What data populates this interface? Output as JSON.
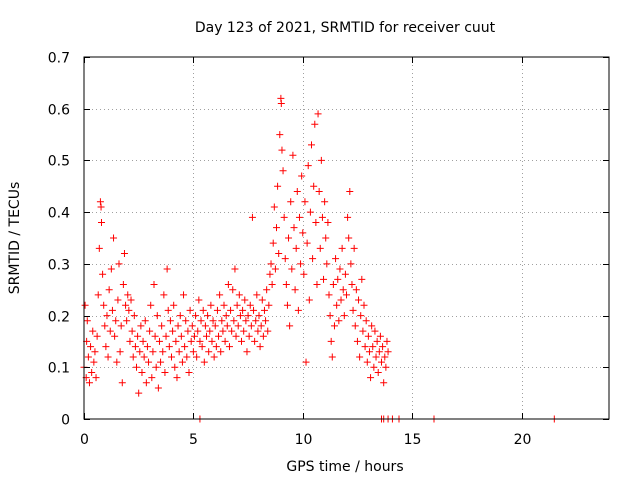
{
  "chart_data": {
    "type": "scatter",
    "title": "Day 123 of 2021, SRMTID for receiver cuut",
    "xlabel": "GPS time / hours",
    "ylabel": "SRMTID / TECUs",
    "xlim": [
      0,
      24
    ],
    "ylim": [
      0,
      0.7
    ],
    "xticks": [
      0,
      5,
      10,
      15,
      20
    ],
    "yticks": [
      0,
      0.1,
      0.2,
      0.3,
      0.4,
      0.5,
      0.6,
      0.7
    ],
    "xtick_labels": [
      "0",
      "5",
      "10",
      "15",
      "20"
    ],
    "ytick_labels": [
      "0",
      "0.1",
      "0.2",
      "0.3",
      "0.4",
      "0.5",
      "0.6",
      "0.7"
    ],
    "grid": true,
    "marker": "+",
    "color": "#ff0000",
    "series": [
      {
        "name": "SRMTID",
        "points": [
          [
            0.0,
            0.1
          ],
          [
            0.05,
            0.22
          ],
          [
            0.1,
            0.08
          ],
          [
            0.12,
            0.15
          ],
          [
            0.15,
            0.19
          ],
          [
            0.2,
            0.12
          ],
          [
            0.25,
            0.07
          ],
          [
            0.3,
            0.14
          ],
          [
            0.35,
            0.09
          ],
          [
            0.4,
            0.17
          ],
          [
            0.45,
            0.11
          ],
          [
            0.5,
            0.13
          ],
          [
            0.55,
            0.08
          ],
          [
            0.6,
            0.16
          ],
          [
            0.65,
            0.24
          ],
          [
            0.7,
            0.33
          ],
          [
            0.75,
            0.42
          ],
          [
            0.78,
            0.41
          ],
          [
            0.8,
            0.38
          ],
          [
            0.85,
            0.28
          ],
          [
            0.9,
            0.22
          ],
          [
            0.95,
            0.18
          ],
          [
            1.0,
            0.14
          ],
          [
            1.05,
            0.2
          ],
          [
            1.1,
            0.12
          ],
          [
            1.15,
            0.25
          ],
          [
            1.2,
            0.17
          ],
          [
            1.25,
            0.29
          ],
          [
            1.3,
            0.21
          ],
          [
            1.35,
            0.35
          ],
          [
            1.4,
            0.16
          ],
          [
            1.45,
            0.19
          ],
          [
            1.5,
            0.11
          ],
          [
            1.55,
            0.23
          ],
          [
            1.6,
            0.3
          ],
          [
            1.65,
            0.13
          ],
          [
            1.7,
            0.18
          ],
          [
            1.75,
            0.07
          ],
          [
            1.8,
            0.26
          ],
          [
            1.85,
            0.32
          ],
          [
            1.9,
            0.22
          ],
          [
            1.95,
            0.19
          ],
          [
            2.0,
            0.24
          ],
          [
            2.05,
            0.21
          ],
          [
            2.1,
            0.15
          ],
          [
            2.15,
            0.23
          ],
          [
            2.2,
            0.17
          ],
          [
            2.25,
            0.12
          ],
          [
            2.3,
            0.2
          ],
          [
            2.35,
            0.14
          ],
          [
            2.4,
            0.1
          ],
          [
            2.45,
            0.16
          ],
          [
            2.5,
            0.05
          ],
          [
            2.55,
            0.13
          ],
          [
            2.6,
            0.18
          ],
          [
            2.65,
            0.09
          ],
          [
            2.7,
            0.15
          ],
          [
            2.75,
            0.12
          ],
          [
            2.8,
            0.19
          ],
          [
            2.85,
            0.07
          ],
          [
            2.9,
            0.14
          ],
          [
            2.95,
            0.11
          ],
          [
            3.0,
            0.17
          ],
          [
            3.05,
            0.22
          ],
          [
            3.1,
            0.08
          ],
          [
            3.15,
            0.13
          ],
          [
            3.2,
            0.26
          ],
          [
            3.25,
            0.16
          ],
          [
            3.3,
            0.1
          ],
          [
            3.35,
            0.2
          ],
          [
            3.4,
            0.06
          ],
          [
            3.45,
            0.15
          ],
          [
            3.5,
            0.11
          ],
          [
            3.55,
            0.18
          ],
          [
            3.6,
            0.13
          ],
          [
            3.65,
            0.24
          ],
          [
            3.7,
            0.09
          ],
          [
            3.75,
            0.16
          ],
          [
            3.8,
            0.29
          ],
          [
            3.85,
            0.21
          ],
          [
            3.9,
            0.14
          ],
          [
            3.95,
            0.19
          ],
          [
            4.0,
            0.12
          ],
          [
            4.05,
            0.17
          ],
          [
            4.1,
            0.22
          ],
          [
            4.15,
            0.1
          ],
          [
            4.2,
            0.15
          ],
          [
            4.25,
            0.08
          ],
          [
            4.3,
            0.18
          ],
          [
            4.35,
            0.13
          ],
          [
            4.4,
            0.2
          ],
          [
            4.45,
            0.16
          ],
          [
            4.5,
            0.11
          ],
          [
            4.55,
            0.24
          ],
          [
            4.6,
            0.14
          ],
          [
            4.65,
            0.19
          ],
          [
            4.7,
            0.12
          ],
          [
            4.75,
            0.17
          ],
          [
            4.8,
            0.09
          ],
          [
            4.85,
            0.21
          ],
          [
            4.9,
            0.15
          ],
          [
            4.95,
            0.18
          ],
          [
            5.0,
            0.13
          ],
          [
            5.05,
            0.16
          ],
          [
            5.1,
            0.2
          ],
          [
            5.15,
            0.12
          ],
          [
            5.2,
            0.17
          ],
          [
            5.25,
            0.23
          ],
          [
            5.3,
            0.15
          ],
          [
            5.35,
            0.19
          ],
          [
            5.4,
            0.14
          ],
          [
            5.45,
            0.21
          ],
          [
            5.5,
            0.11
          ],
          [
            5.55,
            0.18
          ],
          [
            5.6,
            0.16
          ],
          [
            5.65,
            0.2
          ],
          [
            5.7,
            0.13
          ],
          [
            5.75,
            0.17
          ],
          [
            5.8,
            0.22
          ],
          [
            5.85,
            0.15
          ],
          [
            5.9,
            0.19
          ],
          [
            5.95,
            0.12
          ],
          [
            6.0,
            0.18
          ],
          [
            6.05,
            0.14
          ],
          [
            6.1,
            0.21
          ],
          [
            6.15,
            0.16
          ],
          [
            6.2,
            0.24
          ],
          [
            6.25,
            0.13
          ],
          [
            6.3,
            0.19
          ],
          [
            6.35,
            0.17
          ],
          [
            6.4,
            0.22
          ],
          [
            6.45,
            0.15
          ],
          [
            6.5,
            0.2
          ],
          [
            6.55,
            0.18
          ],
          [
            6.6,
            0.26
          ],
          [
            6.65,
            0.14
          ],
          [
            6.7,
            0.21
          ],
          [
            6.75,
            0.17
          ],
          [
            6.8,
            0.25
          ],
          [
            6.85,
            0.19
          ],
          [
            6.9,
            0.29
          ],
          [
            6.95,
            0.16
          ],
          [
            7.0,
            0.22
          ],
          [
            7.05,
            0.18
          ],
          [
            7.1,
            0.24
          ],
          [
            7.15,
            0.2
          ],
          [
            7.2,
            0.15
          ],
          [
            7.25,
            0.21
          ],
          [
            7.3,
            0.17
          ],
          [
            7.35,
            0.23
          ],
          [
            7.4,
            0.19
          ],
          [
            7.45,
            0.13
          ],
          [
            7.5,
            0.2
          ],
          [
            7.55,
            0.16
          ],
          [
            7.6,
            0.22
          ],
          [
            7.65,
            0.18
          ],
          [
            7.7,
            0.39
          ],
          [
            7.75,
            0.21
          ],
          [
            7.8,
            0.15
          ],
          [
            7.85,
            0.19
          ],
          [
            7.9,
            0.24
          ],
          [
            7.95,
            0.17
          ],
          [
            8.0,
            0.2
          ],
          [
            8.05,
            0.14
          ],
          [
            8.1,
            0.18
          ],
          [
            8.15,
            0.23
          ],
          [
            8.2,
            0.16
          ],
          [
            8.25,
            0.21
          ],
          [
            8.3,
            0.19
          ],
          [
            8.35,
            0.25
          ],
          [
            8.4,
            0.17
          ],
          [
            8.45,
            0.22
          ],
          [
            8.5,
            0.28
          ],
          [
            8.55,
            0.3
          ],
          [
            8.6,
            0.26
          ],
          [
            8.65,
            0.34
          ],
          [
            8.7,
            0.41
          ],
          [
            8.75,
            0.29
          ],
          [
            8.8,
            0.37
          ],
          [
            8.85,
            0.45
          ],
          [
            8.9,
            0.32
          ],
          [
            8.95,
            0.55
          ],
          [
            9.0,
            0.62
          ],
          [
            9.02,
            0.61
          ],
          [
            9.05,
            0.52
          ],
          [
            9.1,
            0.48
          ],
          [
            9.15,
            0.39
          ],
          [
            9.2,
            0.31
          ],
          [
            9.25,
            0.26
          ],
          [
            9.3,
            0.22
          ],
          [
            9.35,
            0.35
          ],
          [
            9.4,
            0.18
          ],
          [
            9.45,
            0.42
          ],
          [
            9.5,
            0.29
          ],
          [
            9.55,
            0.51
          ],
          [
            9.6,
            0.37
          ],
          [
            9.65,
            0.25
          ],
          [
            9.7,
            0.33
          ],
          [
            9.75,
            0.44
          ],
          [
            9.8,
            0.21
          ],
          [
            9.85,
            0.39
          ],
          [
            9.9,
            0.3
          ],
          [
            9.95,
            0.47
          ],
          [
            10.0,
            0.36
          ],
          [
            10.05,
            0.28
          ],
          [
            10.1,
            0.42
          ],
          [
            10.15,
            0.11
          ],
          [
            10.2,
            0.34
          ],
          [
            10.25,
            0.49
          ],
          [
            10.3,
            0.23
          ],
          [
            10.35,
            0.4
          ],
          [
            10.4,
            0.53
          ],
          [
            10.45,
            0.31
          ],
          [
            10.5,
            0.45
          ],
          [
            10.55,
            0.57
          ],
          [
            10.6,
            0.38
          ],
          [
            10.65,
            0.26
          ],
          [
            10.7,
            0.59
          ],
          [
            10.75,
            0.44
          ],
          [
            10.8,
            0.33
          ],
          [
            10.85,
            0.5
          ],
          [
            10.9,
            0.39
          ],
          [
            10.95,
            0.27
          ],
          [
            11.0,
            0.42
          ],
          [
            11.05,
            0.35
          ],
          [
            11.1,
            0.3
          ],
          [
            11.15,
            0.38
          ],
          [
            11.2,
            0.24
          ],
          [
            11.25,
            0.2
          ],
          [
            11.3,
            0.15
          ],
          [
            11.35,
            0.12
          ],
          [
            11.4,
            0.26
          ],
          [
            11.45,
            0.18
          ],
          [
            11.5,
            0.31
          ],
          [
            11.55,
            0.22
          ],
          [
            11.6,
            0.27
          ],
          [
            11.65,
            0.19
          ],
          [
            11.7,
            0.29
          ],
          [
            11.75,
            0.23
          ],
          [
            11.8,
            0.33
          ],
          [
            11.85,
            0.25
          ],
          [
            11.9,
            0.2
          ],
          [
            11.95,
            0.28
          ],
          [
            12.0,
            0.24
          ],
          [
            12.05,
            0.39
          ],
          [
            12.1,
            0.35
          ],
          [
            12.15,
            0.44
          ],
          [
            12.2,
            0.3
          ],
          [
            12.25,
            0.26
          ],
          [
            12.3,
            0.21
          ],
          [
            12.35,
            0.33
          ],
          [
            12.4,
            0.18
          ],
          [
            12.45,
            0.25
          ],
          [
            12.5,
            0.15
          ],
          [
            12.55,
            0.23
          ],
          [
            12.6,
            0.12
          ],
          [
            12.65,
            0.2
          ],
          [
            12.7,
            0.27
          ],
          [
            12.75,
            0.17
          ],
          [
            12.8,
            0.22
          ],
          [
            12.85,
            0.14
          ],
          [
            12.9,
            0.19
          ],
          [
            12.95,
            0.11
          ],
          [
            13.0,
            0.16
          ],
          [
            13.05,
            0.13
          ],
          [
            13.1,
            0.08
          ],
          [
            13.15,
            0.18
          ],
          [
            13.2,
            0.14
          ],
          [
            13.25,
            0.1
          ],
          [
            13.3,
            0.17
          ],
          [
            13.35,
            0.12
          ],
          [
            13.4,
            0.15
          ],
          [
            13.45,
            0.09
          ],
          [
            13.5,
            0.13
          ],
          [
            13.55,
            0.16
          ],
          [
            13.6,
            0.11
          ],
          [
            13.65,
            0.14
          ],
          [
            13.7,
            0.07
          ],
          [
            13.75,
            0.12
          ],
          [
            13.8,
            0.1
          ],
          [
            13.85,
            0.15
          ],
          [
            13.9,
            0.13
          ],
          [
            5.3,
            0.0
          ],
          [
            13.6,
            0.0
          ],
          [
            13.7,
            0.0
          ],
          [
            13.9,
            0.0
          ],
          [
            14.1,
            0.0
          ],
          [
            14.4,
            0.0
          ],
          [
            16.0,
            0.0
          ],
          [
            21.5,
            0.0
          ]
        ]
      }
    ]
  }
}
